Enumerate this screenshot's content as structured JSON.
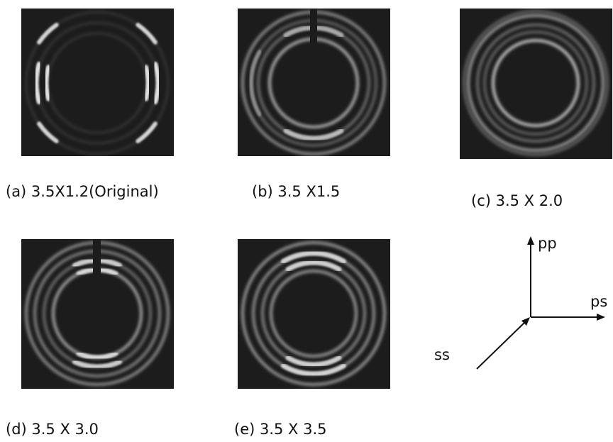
{
  "panels": [
    {
      "caption": "(a) 3.5X1.2(Original)"
    },
    {
      "caption": "(b) 3.5 X1.5"
    },
    {
      "caption": "(c) 3.5 X 2.0"
    },
    {
      "caption": "(d) 3.5 X 3.0"
    },
    {
      "caption": "(e) 3.5 X 3.5"
    }
  ],
  "axes": {
    "up": "pp",
    "right": "ps",
    "diagonal": "ss"
  }
}
